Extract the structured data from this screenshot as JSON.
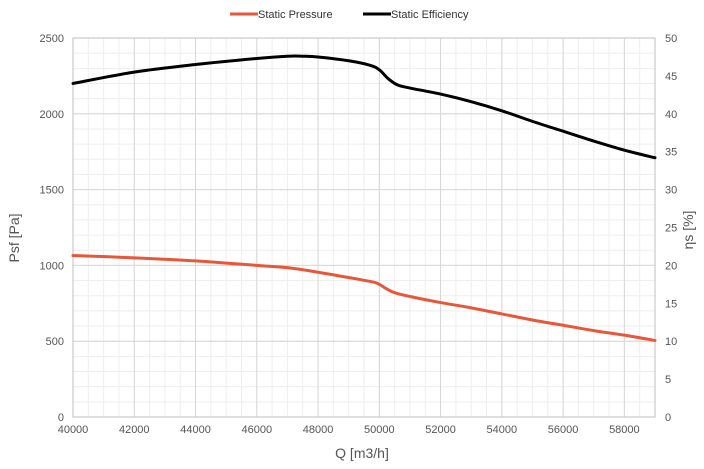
{
  "chart_data": {
    "type": "line",
    "legend": {
      "position": "top-center"
    },
    "grid": true,
    "x": {
      "label": "Q [m3/h]",
      "range": [
        40000,
        59000
      ],
      "ticks": [
        40000,
        42000,
        44000,
        46000,
        48000,
        50000,
        52000,
        54000,
        56000,
        58000
      ],
      "minor_step": 500
    },
    "y_left": {
      "label": "Psf [Pa]",
      "range": [
        0,
        2500
      ],
      "ticks": [
        0,
        500,
        1000,
        1500,
        2000,
        2500
      ],
      "minor_step": 100
    },
    "y_right": {
      "label": "ηs [%]",
      "range": [
        0,
        50
      ],
      "ticks": [
        0,
        5,
        10,
        15,
        20,
        25,
        30,
        35,
        40,
        45,
        50
      ],
      "minor_step": 2.5
    },
    "series": [
      {
        "name": "Static Pressure",
        "axis": "left",
        "color": "#e8573a",
        "points": [
          [
            40000,
            1065
          ],
          [
            42000,
            1050
          ],
          [
            44000,
            1030
          ],
          [
            46000,
            1000
          ],
          [
            47000,
            985
          ],
          [
            48000,
            955
          ],
          [
            49000,
            920
          ],
          [
            49800,
            890
          ],
          [
            50000,
            875
          ],
          [
            50200,
            850
          ],
          [
            50500,
            820
          ],
          [
            51000,
            795
          ],
          [
            52000,
            755
          ],
          [
            53000,
            720
          ],
          [
            54000,
            680
          ],
          [
            55000,
            640
          ],
          [
            56000,
            605
          ],
          [
            57000,
            570
          ],
          [
            58000,
            540
          ],
          [
            59000,
            505
          ]
        ]
      },
      {
        "name": "Static Efficiency",
        "axis": "right",
        "color": "#000000",
        "points": [
          [
            40000,
            44
          ],
          [
            42000,
            45.5
          ],
          [
            44000,
            46.5
          ],
          [
            46000,
            47.3
          ],
          [
            47000,
            47.6
          ],
          [
            47500,
            47.6
          ],
          [
            48000,
            47.5
          ],
          [
            49000,
            47
          ],
          [
            49700,
            46.4
          ],
          [
            50000,
            45.8
          ],
          [
            50300,
            44.6
          ],
          [
            50600,
            43.8
          ],
          [
            51000,
            43.4
          ],
          [
            52000,
            42.6
          ],
          [
            53000,
            41.6
          ],
          [
            54000,
            40.4
          ],
          [
            55000,
            39
          ],
          [
            56000,
            37.7
          ],
          [
            57000,
            36.4
          ],
          [
            58000,
            35.2
          ],
          [
            59000,
            34.2
          ]
        ]
      }
    ]
  }
}
